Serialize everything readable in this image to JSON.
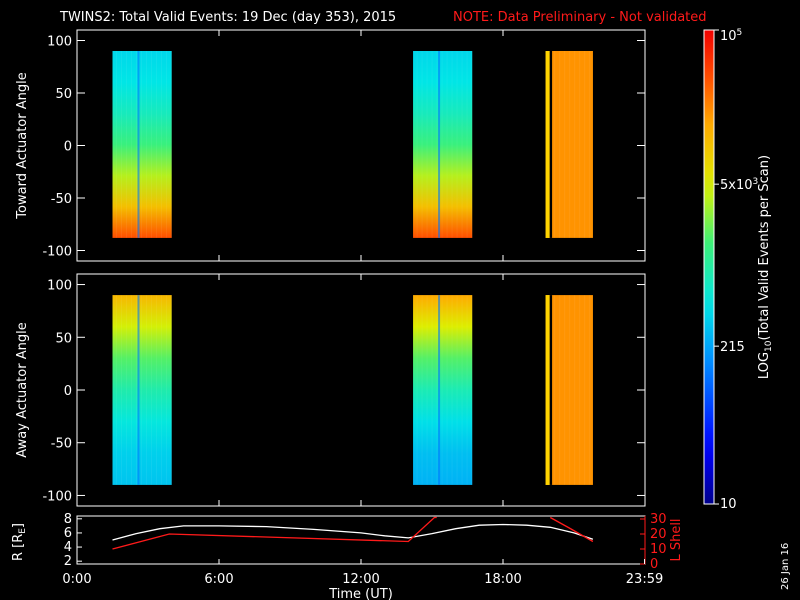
{
  "title": "TWINS2: Total Valid Events: 19 Dec (day 353), 2015",
  "note": "NOTE: Data Preliminary - Not validated",
  "stamp": "26 Jan 16",
  "colors": {
    "background": "#000000",
    "axes": "#ffffff",
    "note": "#ff2020",
    "lshell": "#ff1a1a",
    "rline": "#ffffff"
  },
  "chart_data": [
    {
      "type": "heatmap",
      "ylabel": "Toward Actuator Angle",
      "ylim": [
        -110,
        110
      ],
      "yticks": [
        -100,
        -50,
        0,
        50,
        100
      ],
      "xlim": [
        0,
        24
      ],
      "yrange_data": [
        -88,
        90
      ],
      "scans": [
        {
          "start": 1.5,
          "end": 4.0,
          "top_log": 2.6,
          "bottom_log": 4.6,
          "shape": "gradient"
        },
        {
          "start": 14.2,
          "end": 16.7,
          "top_log": 2.6,
          "bottom_log": 4.6,
          "shape": "gradient"
        },
        {
          "start": 19.8,
          "end": 21.8,
          "top_log": 4.3,
          "bottom_log": 4.3,
          "shape": "uniform"
        }
      ]
    },
    {
      "type": "heatmap",
      "ylabel": "Away Actuator Angle",
      "ylim": [
        -110,
        110
      ],
      "yticks": [
        -100,
        -50,
        0,
        50,
        100
      ],
      "xlim": [
        0,
        24
      ],
      "yrange_data": [
        -90,
        90
      ],
      "scans": [
        {
          "start": 1.5,
          "end": 4.0,
          "top_log": 4.1,
          "bottom_log": 2.5,
          "shape": "gradient"
        },
        {
          "start": 14.2,
          "end": 16.7,
          "top_log": 4.2,
          "bottom_log": 2.4,
          "shape": "gradient"
        },
        {
          "start": 19.8,
          "end": 21.8,
          "top_log": 4.3,
          "bottom_log": 4.3,
          "shape": "uniform"
        }
      ]
    },
    {
      "type": "line",
      "ylabel": "R [R",
      "ylabel_sub": "E",
      "ylabel_end": "]",
      "y2label": "L Shell",
      "ylim": [
        1.6,
        8.4
      ],
      "yticks": [
        2,
        4,
        6,
        8
      ],
      "y2lim": [
        0,
        32
      ],
      "y2ticks": [
        0,
        10,
        20,
        30
      ],
      "xlabel": "Time (UT)",
      "xticks_labels": [
        "0:00",
        "6:00",
        "12:00",
        "18:00",
        "23:59"
      ],
      "xticks": [
        0,
        6,
        12,
        18,
        23.98
      ],
      "series": [
        {
          "axis": "left",
          "x": [
            1.5,
            2.5,
            3.5,
            4.5,
            6,
            8,
            10,
            12,
            13,
            14,
            15,
            16,
            17,
            18,
            19,
            20,
            21,
            21.8
          ],
          "y": [
            5.0,
            5.9,
            6.6,
            7.0,
            7.0,
            6.9,
            6.5,
            6.0,
            5.6,
            5.3,
            5.9,
            6.6,
            7.1,
            7.2,
            7.1,
            6.8,
            6.0,
            5.1
          ]
        },
        {
          "axis": "right",
          "x": [
            1.5,
            3.9,
            14.0,
            15.1,
            15.2
          ],
          "y": [
            10,
            20,
            15,
            31,
            31
          ]
        },
        {
          "axis": "right",
          "x": [
            20.0,
            20.8,
            21.8
          ],
          "y": [
            31,
            24,
            15
          ]
        }
      ]
    }
  ],
  "colorbar": {
    "label_pre": "LOG",
    "label_sub": "10",
    "label_post": "(Total Valid Events per Scan)",
    "log_min": 1.0,
    "log_max": 5.0,
    "ticks": [
      {
        "log": 5.0,
        "label": "10",
        "sup": "5"
      },
      {
        "log": 3.699,
        "label": "5x10",
        "sup": "3"
      },
      {
        "log": 2.332,
        "label": "215"
      },
      {
        "log": 1.0,
        "label": "10"
      }
    ]
  }
}
